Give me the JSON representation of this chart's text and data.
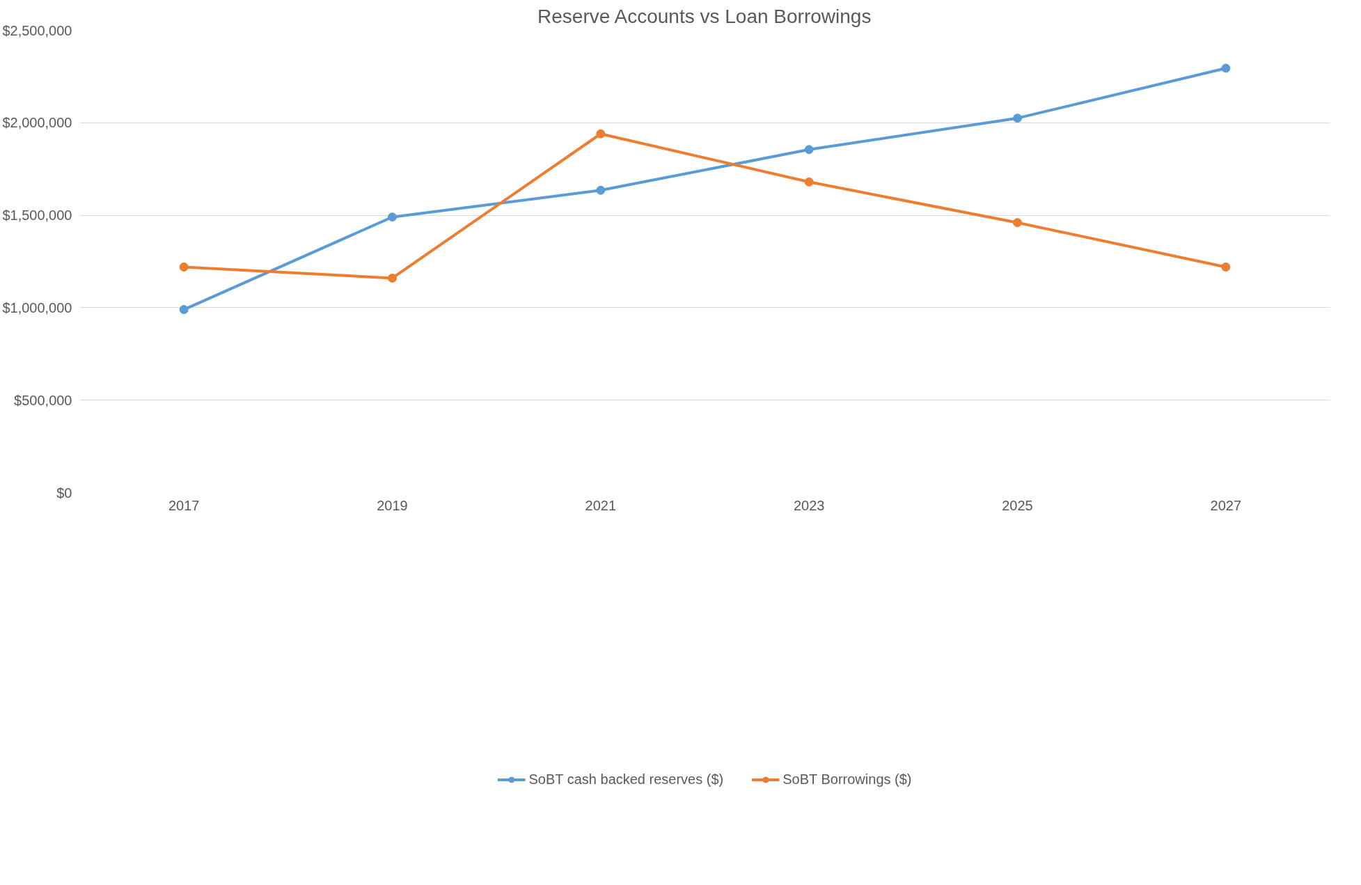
{
  "chart_data": {
    "type": "line",
    "title": "Reserve Accounts vs Loan Borrowings",
    "categories": [
      "2017",
      "2019",
      "2021",
      "2023",
      "2025",
      "2027"
    ],
    "series": [
      {
        "name": "SoBT cash backed reserves ($)",
        "color": "#5b9bd5",
        "values": [
          990000,
          1490000,
          1635000,
          1855000,
          2025000,
          2295000
        ]
      },
      {
        "name": "SoBT Borrowings ($)",
        "color": "#ed7d31",
        "values": [
          1220000,
          1160000,
          1940000,
          1680000,
          1460000,
          1220000
        ]
      }
    ],
    "ylim": [
      0,
      2500000
    ],
    "yticks": [
      {
        "value": 0,
        "label": "$0"
      },
      {
        "value": 500000,
        "label": "$500,000"
      },
      {
        "value": 1000000,
        "label": "$1,000,000"
      },
      {
        "value": 1500000,
        "label": "$1,500,000"
      },
      {
        "value": 2000000,
        "label": "$2,000,000"
      },
      {
        "value": 2500000,
        "label": "$2,500,000"
      }
    ],
    "grid": "y",
    "legend": "bottom",
    "marker": "circle",
    "line_style": "solid"
  }
}
